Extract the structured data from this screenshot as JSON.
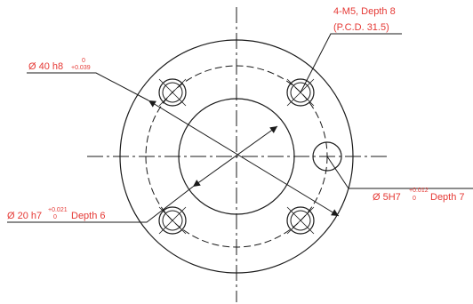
{
  "colors": {
    "line": "#1a1a1a",
    "annotation": "#e53935"
  },
  "callouts": {
    "tapped_holes": {
      "line1": "4-M5, Depth 8",
      "line2": "(P.C.D. 31.5)"
    },
    "outer_diameter": {
      "main": "Ø 40 h8",
      "tol_upper": "0",
      "tol_lower": "+0.039"
    },
    "inner_diameter": {
      "main": "Ø 20 h7",
      "tol_upper": "+0.021",
      "tol_lower": "0",
      "suffix": "Depth 6"
    },
    "pin_hole": {
      "main": "Ø 5H7",
      "tol_upper": "+0.012",
      "tol_lower": "0",
      "suffix": "Depth 7"
    }
  }
}
